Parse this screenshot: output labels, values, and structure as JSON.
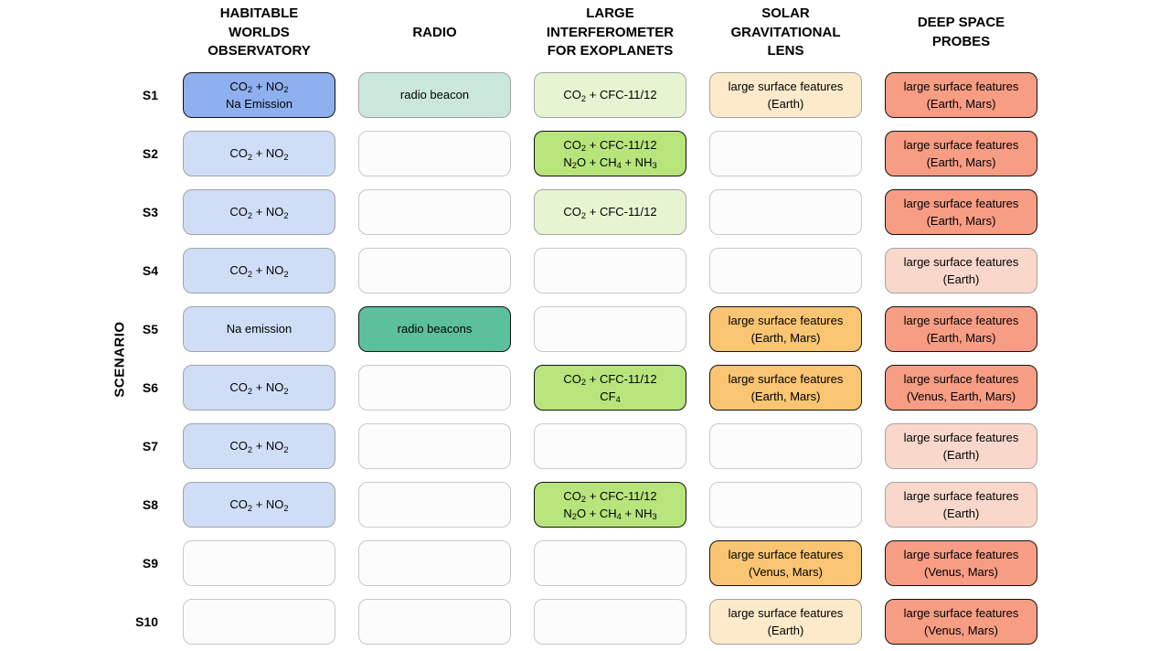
{
  "figure": {
    "y_axis_label": "SCENARIO",
    "columns": [
      {
        "id": "hwo",
        "label_lines": [
          "HABITABLE",
          "WORLDS",
          "OBSERVATORY"
        ]
      },
      {
        "id": "radio",
        "label_lines": [
          "RADIO"
        ]
      },
      {
        "id": "life",
        "label_lines": [
          "LARGE",
          "INTERFEROMETER",
          "FOR EXOPLANETS"
        ]
      },
      {
        "id": "sgl",
        "label_lines": [
          "SOLAR",
          "GRAVITATIONAL",
          "LENS"
        ]
      },
      {
        "id": "dsp",
        "label_lines": [
          "DEEP SPACE",
          "PROBES"
        ]
      }
    ],
    "styles": {
      "blue_strong": {
        "fill": "#8fb0ee",
        "border": "#111111",
        "border_width": 1.5
      },
      "blue_light": {
        "fill": "#cfdef6",
        "border": "#a3a3a3",
        "border_width": 1
      },
      "mint_light": {
        "fill": "#cbe7db",
        "border": "#a3a3a3",
        "border_width": 1
      },
      "teal_strong": {
        "fill": "#5cc09c",
        "border": "#111111",
        "border_width": 1.5
      },
      "green_light": {
        "fill": "#e7f4d1",
        "border": "#a3a3a3",
        "border_width": 1
      },
      "green_strong": {
        "fill": "#b8e57b",
        "border": "#111111",
        "border_width": 1.5
      },
      "peach_light": {
        "fill": "#fdeaca",
        "border": "#a3a3a3",
        "border_width": 1
      },
      "orange_strong": {
        "fill": "#f9c572",
        "border": "#111111",
        "border_width": 1.5
      },
      "pink_light": {
        "fill": "#f9d8cb",
        "border": "#a3a3a3",
        "border_width": 1
      },
      "salmon_strong": {
        "fill": "#f79d84",
        "border": "#111111",
        "border_width": 1.5
      },
      "empty": {
        "fill": "#fcfcfc",
        "border": "#c8c8c8",
        "border_width": 1
      }
    },
    "rows": [
      {
        "label": "S1",
        "cells": [
          {
            "lines": [
              "CO₂ + NO₂",
              "Na Emission"
            ],
            "style": "blue_strong"
          },
          {
            "lines": [
              "radio beacon"
            ],
            "style": "mint_light"
          },
          {
            "lines": [
              "CO₂ + CFC-11/12"
            ],
            "style": "green_light"
          },
          {
            "lines": [
              "large surface features",
              "(Earth)"
            ],
            "style": "peach_light"
          },
          {
            "lines": [
              "large surface features",
              "(Earth, Mars)"
            ],
            "style": "salmon_strong"
          }
        ]
      },
      {
        "label": "S2",
        "cells": [
          {
            "lines": [
              "CO₂ + NO₂"
            ],
            "style": "blue_light"
          },
          {
            "lines": [],
            "style": "empty"
          },
          {
            "lines": [
              "CO₂ + CFC-11/12",
              "N₂O + CH₄ + NH₃"
            ],
            "style": "green_strong"
          },
          {
            "lines": [],
            "style": "empty"
          },
          {
            "lines": [
              "large surface features",
              "(Earth, Mars)"
            ],
            "style": "salmon_strong"
          }
        ]
      },
      {
        "label": "S3",
        "cells": [
          {
            "lines": [
              "CO₂ + NO₂"
            ],
            "style": "blue_light"
          },
          {
            "lines": [],
            "style": "empty"
          },
          {
            "lines": [
              "CO₂ + CFC-11/12"
            ],
            "style": "green_light"
          },
          {
            "lines": [],
            "style": "empty"
          },
          {
            "lines": [
              "large surface features",
              "(Earth, Mars)"
            ],
            "style": "salmon_strong"
          }
        ]
      },
      {
        "label": "S4",
        "cells": [
          {
            "lines": [
              "CO₂ + NO₂"
            ],
            "style": "blue_light"
          },
          {
            "lines": [],
            "style": "empty"
          },
          {
            "lines": [],
            "style": "empty"
          },
          {
            "lines": [],
            "style": "empty"
          },
          {
            "lines": [
              "large surface features",
              "(Earth)"
            ],
            "style": "pink_light"
          }
        ]
      },
      {
        "label": "S5",
        "cells": [
          {
            "lines": [
              "Na emission"
            ],
            "style": "blue_light"
          },
          {
            "lines": [
              "radio beacons"
            ],
            "style": "teal_strong"
          },
          {
            "lines": [],
            "style": "empty"
          },
          {
            "lines": [
              "large surface features",
              "(Earth, Mars)"
            ],
            "style": "orange_strong"
          },
          {
            "lines": [
              "large surface features",
              "(Earth, Mars)"
            ],
            "style": "salmon_strong"
          }
        ]
      },
      {
        "label": "S6",
        "cells": [
          {
            "lines": [
              "CO₂ + NO₂"
            ],
            "style": "blue_light"
          },
          {
            "lines": [],
            "style": "empty"
          },
          {
            "lines": [
              "CO₂ + CFC-11/12",
              "CF₄"
            ],
            "style": "green_strong"
          },
          {
            "lines": [
              "large surface features",
              "(Earth, Mars)"
            ],
            "style": "orange_strong"
          },
          {
            "lines": [
              "large surface features",
              "(Venus, Earth, Mars)"
            ],
            "style": "salmon_strong"
          }
        ]
      },
      {
        "label": "S7",
        "cells": [
          {
            "lines": [
              "CO₂ + NO₂"
            ],
            "style": "blue_light"
          },
          {
            "lines": [],
            "style": "empty"
          },
          {
            "lines": [],
            "style": "empty"
          },
          {
            "lines": [],
            "style": "empty"
          },
          {
            "lines": [
              "large surface features",
              "(Earth)"
            ],
            "style": "pink_light"
          }
        ]
      },
      {
        "label": "S8",
        "cells": [
          {
            "lines": [
              "CO₂ + NO₂"
            ],
            "style": "blue_light"
          },
          {
            "lines": [],
            "style": "empty"
          },
          {
            "lines": [
              "CO₂ + CFC-11/12",
              "N₂O + CH₄ + NH₃"
            ],
            "style": "green_strong"
          },
          {
            "lines": [],
            "style": "empty"
          },
          {
            "lines": [
              "large surface features",
              "(Earth)"
            ],
            "style": "pink_light"
          }
        ]
      },
      {
        "label": "S9",
        "cells": [
          {
            "lines": [],
            "style": "empty"
          },
          {
            "lines": [],
            "style": "empty"
          },
          {
            "lines": [],
            "style": "empty"
          },
          {
            "lines": [
              "large surface features",
              "(Venus, Mars)"
            ],
            "style": "orange_strong"
          },
          {
            "lines": [
              "large surface features",
              "(Venus, Mars)"
            ],
            "style": "salmon_strong"
          }
        ]
      },
      {
        "label": "S10",
        "cells": [
          {
            "lines": [],
            "style": "empty"
          },
          {
            "lines": [],
            "style": "empty"
          },
          {
            "lines": [],
            "style": "empty"
          },
          {
            "lines": [
              "large surface features",
              "(Earth)"
            ],
            "style": "peach_light"
          },
          {
            "lines": [
              "large surface features",
              "(Venus, Mars)"
            ],
            "style": "salmon_strong"
          }
        ]
      }
    ]
  }
}
